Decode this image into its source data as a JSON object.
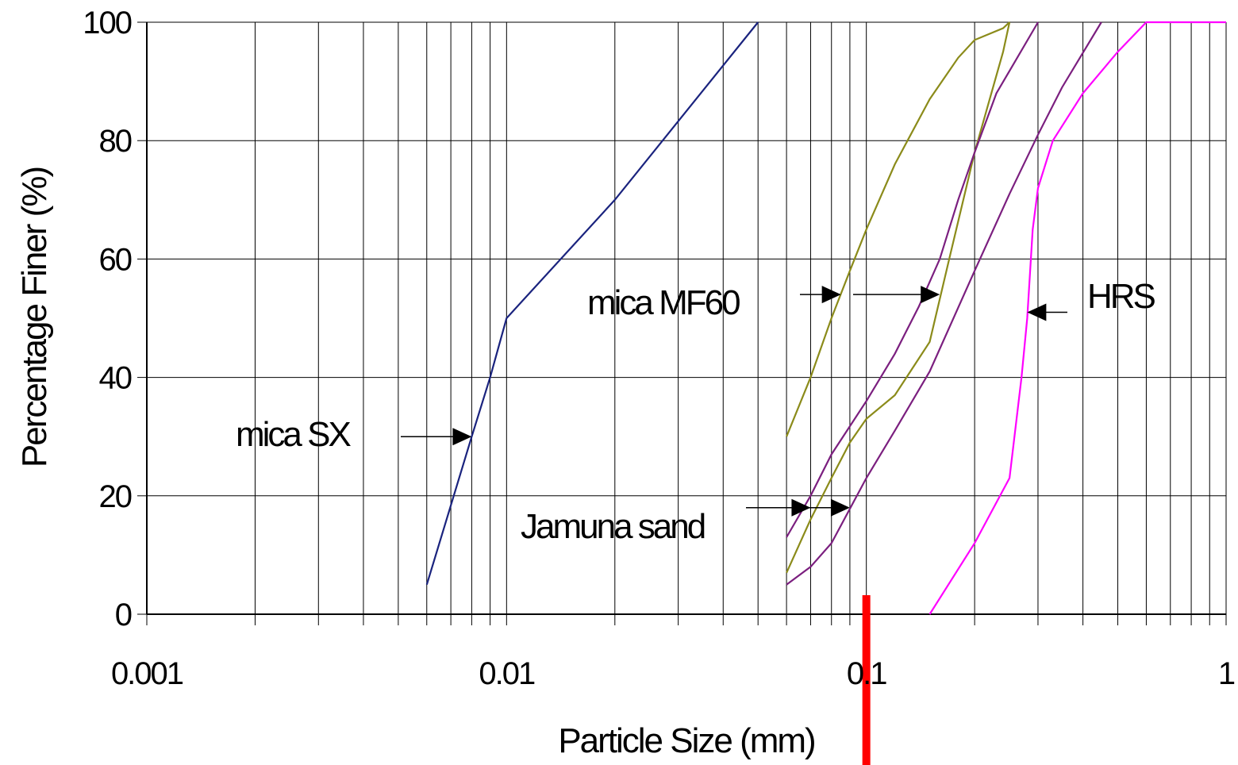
{
  "chart_data": {
    "type": "line",
    "title": "",
    "xlabel": "Particle Size (mm)",
    "ylabel": "Percentage Finer (%)",
    "x_scale": "log",
    "xlim": [
      0.001,
      1
    ],
    "ylim": [
      0,
      100
    ],
    "x_tick_labels": [
      "0.001",
      "0.01",
      "0.1",
      "1"
    ],
    "y_tick_labels": [
      "0",
      "20",
      "40",
      "60",
      "80",
      "100"
    ],
    "grid": true,
    "legend": "none",
    "series": [
      {
        "color": "#1a237e",
        "points": [
          [
            0.006,
            5
          ],
          [
            0.008,
            30
          ],
          [
            0.009,
            40
          ],
          [
            0.01,
            50
          ],
          [
            0.02,
            70
          ],
          [
            0.05,
            100
          ]
        ]
      },
      {
        "color": "#8b8b1a",
        "points": [
          [
            0.06,
            30
          ],
          [
            0.07,
            40
          ],
          [
            0.08,
            50
          ],
          [
            0.09,
            58
          ],
          [
            0.1,
            65
          ],
          [
            0.12,
            76
          ],
          [
            0.15,
            87
          ],
          [
            0.18,
            94
          ],
          [
            0.2,
            97
          ],
          [
            0.24,
            99
          ],
          [
            0.25,
            100
          ]
        ]
      },
      {
        "color": "#8b8b1a",
        "points": [
          [
            0.06,
            7
          ],
          [
            0.07,
            16
          ],
          [
            0.08,
            23
          ],
          [
            0.09,
            29
          ],
          [
            0.1,
            33
          ],
          [
            0.12,
            37
          ],
          [
            0.15,
            46
          ],
          [
            0.17,
            60
          ],
          [
            0.2,
            78
          ],
          [
            0.24,
            95
          ],
          [
            0.25,
            100
          ]
        ]
      },
      {
        "color": "#7b1f7f",
        "points": [
          [
            0.06,
            13
          ],
          [
            0.07,
            20
          ],
          [
            0.08,
            27
          ],
          [
            0.1,
            36
          ],
          [
            0.12,
            44
          ],
          [
            0.14,
            52
          ],
          [
            0.16,
            60
          ],
          [
            0.18,
            70
          ],
          [
            0.2,
            78
          ],
          [
            0.23,
            88
          ],
          [
            0.3,
            100
          ]
        ]
      },
      {
        "color": "#7b1f7f",
        "points": [
          [
            0.06,
            5
          ],
          [
            0.07,
            8
          ],
          [
            0.08,
            12
          ],
          [
            0.1,
            23
          ],
          [
            0.12,
            31
          ],
          [
            0.15,
            41
          ],
          [
            0.2,
            58
          ],
          [
            0.25,
            71
          ],
          [
            0.3,
            81
          ],
          [
            0.35,
            89
          ],
          [
            0.45,
            100
          ]
        ]
      },
      {
        "color": "#ff00ff",
        "points": [
          [
            0.15,
            0
          ],
          [
            0.2,
            12
          ],
          [
            0.25,
            23
          ],
          [
            0.27,
            40
          ],
          [
            0.28,
            50
          ],
          [
            0.29,
            65
          ],
          [
            0.3,
            72
          ],
          [
            0.33,
            80
          ],
          [
            0.4,
            88
          ],
          [
            0.5,
            95
          ],
          [
            0.6,
            100
          ],
          [
            1,
            100
          ]
        ]
      }
    ],
    "annotations": [
      {
        "text": "mica SX",
        "arrow_to": [
          [
            0.008,
            30
          ]
        ]
      },
      {
        "text": "mica MF60",
        "arrow_to": [
          [
            0.085,
            54
          ],
          [
            0.16,
            54
          ]
        ]
      },
      {
        "text": "HRS",
        "arrow_to": [
          [
            0.28,
            51
          ]
        ]
      },
      {
        "text": "Jamuna sand",
        "arrow_to": [
          [
            0.07,
            18
          ],
          [
            0.09,
            18
          ]
        ]
      }
    ],
    "reference_marker": {
      "color": "#ff0000",
      "x": 0.1
    }
  }
}
